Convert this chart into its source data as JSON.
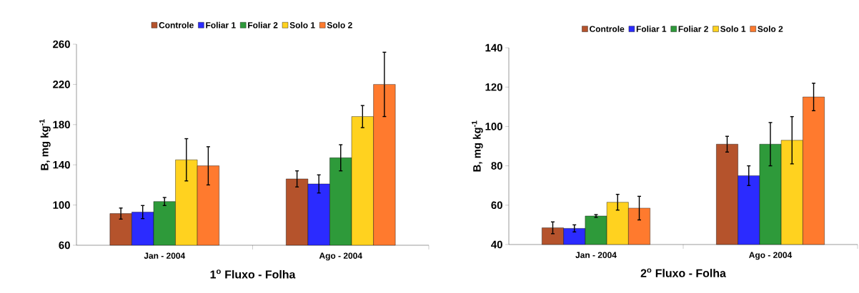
{
  "chart_data": [
    {
      "type": "bar",
      "title": "1$^{o}$ Fluxo - Folha",
      "ylabel": "B,  mg kg$^{-1}$",
      "categories": [
        "Jan - 2004",
        "Ago - 2004"
      ],
      "ylim": [
        60,
        260
      ],
      "yticks": [
        60,
        100,
        140,
        180,
        220,
        260
      ],
      "legend": "top",
      "series": [
        {
          "name": "Controle",
          "color": "#b5532c",
          "values": [
            91.5,
            126
          ],
          "errors": [
            5.5,
            8
          ]
        },
        {
          "name": "Foliar 1",
          "color": "#2b2bff",
          "values": [
            93,
            121
          ],
          "errors": [
            6.5,
            9
          ]
        },
        {
          "name": "Foliar 2",
          "color": "#2e9a3a",
          "values": [
            103.5,
            147
          ],
          "errors": [
            4,
            13
          ]
        },
        {
          "name": "Solo 1",
          "color": "#ffd21f",
          "values": [
            145,
            188
          ],
          "errors": [
            21,
            11
          ]
        },
        {
          "name": "Solo 2",
          "color": "#ff7a2e",
          "values": [
            139,
            220
          ],
          "errors": [
            19,
            32
          ]
        }
      ]
    },
    {
      "type": "bar",
      "title": "2$^{o}$ Fluxo - Folha",
      "ylabel": "B, mg kg$^{-1}$",
      "categories": [
        "Jan - 2004",
        "Ago - 2004"
      ],
      "ylim": [
        40,
        140
      ],
      "yticks": [
        40,
        60,
        80,
        100,
        120,
        140
      ],
      "legend": "top",
      "series": [
        {
          "name": "Controle",
          "color": "#b5532c",
          "values": [
            48.5,
            91
          ],
          "errors": [
            3,
            4
          ]
        },
        {
          "name": "Foliar 1",
          "color": "#2b2bff",
          "values": [
            48.2,
            75
          ],
          "errors": [
            1.8,
            5
          ]
        },
        {
          "name": "Foliar 2",
          "color": "#2e9a3a",
          "values": [
            54.5,
            91
          ],
          "errors": [
            0.7,
            11
          ]
        },
        {
          "name": "Solo 1",
          "color": "#ffd21f",
          "values": [
            61.5,
            93
          ],
          "errors": [
            4,
            12
          ]
        },
        {
          "name": "Solo 2",
          "color": "#ff7a2e",
          "values": [
            58.5,
            115
          ],
          "errors": [
            6,
            7
          ]
        }
      ]
    }
  ]
}
